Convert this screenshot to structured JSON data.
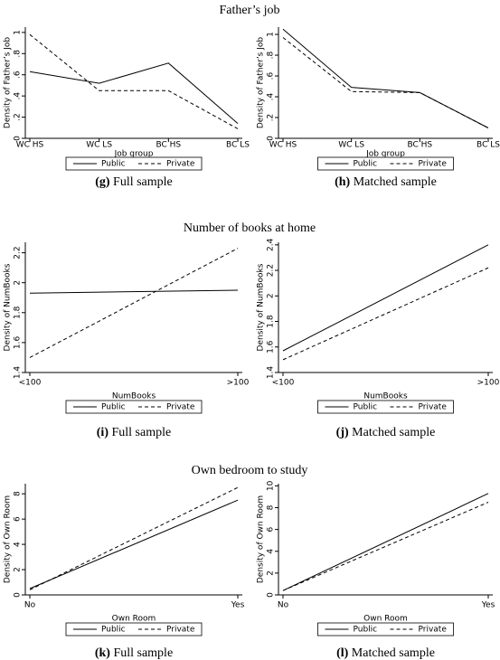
{
  "section_titles": [
    "Father’s job",
    "Number of books at home",
    "Own bedroom to study"
  ],
  "chart_data": [
    {
      "type": "line",
      "xlabel": "Job group",
      "ylabel": "Density of Father’s Job",
      "caption_label": "(g)",
      "caption": "Full sample",
      "categories": [
        "WC HS",
        "WC LS",
        "BC HS",
        "BC LS"
      ],
      "series": [
        {
          "name": "Public",
          "color": "#000000",
          "line_style": "solid",
          "values": [
            0.63,
            0.52,
            0.71,
            0.14
          ]
        },
        {
          "name": "Private",
          "color": "#000000",
          "line_style": "dashed",
          "values": [
            0.98,
            0.45,
            0.45,
            0.09
          ]
        }
      ],
      "ylim": [
        0,
        1.05
      ],
      "yticks": [
        0,
        {
          "value": 0.2,
          "label": ".2"
        },
        {
          "value": 0.4,
          "label": ".4"
        },
        {
          "value": 0.6,
          "label": ".6"
        },
        {
          "value": 0.8,
          "label": ".8"
        },
        1
      ]
    },
    {
      "type": "line",
      "xlabel": "Job group",
      "ylabel": "Density of Father’s Job",
      "caption_label": "(h)",
      "caption": "Matched sample",
      "categories": [
        "WC HS",
        "WC LS",
        "BC HS",
        "BC LS"
      ],
      "series": [
        {
          "name": "Public",
          "color": "#000000",
          "line_style": "solid",
          "values": [
            1.05,
            0.49,
            0.44,
            0.1
          ]
        },
        {
          "name": "Private",
          "color": "#000000",
          "line_style": "dashed",
          "values": [
            0.97,
            0.45,
            0.44,
            0.1
          ]
        }
      ],
      "ylim": [
        0,
        1.07
      ],
      "yticks": [
        0,
        {
          "value": 0.2,
          "label": ".2"
        },
        {
          "value": 0.4,
          "label": ".4"
        },
        {
          "value": 0.6,
          "label": ".6"
        },
        {
          "value": 0.8,
          "label": ".8"
        },
        1
      ]
    },
    {
      "type": "line",
      "xlabel": "NumBooks",
      "ylabel": "Density of NumBooks",
      "caption_label": "(i)",
      "caption": "Full sample",
      "categories": [
        "<100",
        ">100"
      ],
      "series": [
        {
          "name": "Public",
          "color": "#000000",
          "line_style": "solid",
          "values": [
            1.93,
            1.95
          ]
        },
        {
          "name": "Private",
          "color": "#000000",
          "line_style": "dashed",
          "values": [
            1.5,
            2.23
          ]
        }
      ],
      "ylim": [
        1.4,
        2.27
      ],
      "yticks": [
        1.4,
        1.6,
        1.8,
        2,
        2.2
      ]
    },
    {
      "type": "line",
      "xlabel": "NumBooks",
      "ylabel": "Density of NumBooks",
      "caption_label": "(j)",
      "caption": "Matched sample",
      "categories": [
        "<100",
        ">100"
      ],
      "series": [
        {
          "name": "Public",
          "color": "#000000",
          "line_style": "solid",
          "values": [
            1.57,
            2.4
          ]
        },
        {
          "name": "Private",
          "color": "#000000",
          "line_style": "dashed",
          "values": [
            1.5,
            2.22
          ]
        }
      ],
      "ylim": [
        1.4,
        2.42
      ],
      "yticks": [
        1.4,
        1.6,
        1.8,
        2,
        2.2,
        2.4
      ]
    },
    {
      "type": "line",
      "xlabel": "Own Room",
      "ylabel": "Density of Own Room",
      "caption_label": "(k)",
      "caption": "Full sample",
      "categories": [
        "No",
        "Yes"
      ],
      "series": [
        {
          "name": "Public",
          "color": "#000000",
          "line_style": "solid",
          "values": [
            0.5,
            7.5
          ]
        },
        {
          "name": "Private",
          "color": "#000000",
          "line_style": "dashed",
          "values": [
            0.4,
            8.5
          ]
        }
      ],
      "ylim": [
        0,
        8.8
      ],
      "yticks": [
        0,
        2,
        4,
        6,
        8
      ]
    },
    {
      "type": "line",
      "xlabel": "Own Room",
      "ylabel": "Density of Own Room",
      "caption_label": "(l)",
      "caption": "Matched sample",
      "categories": [
        "No",
        "Yes"
      ],
      "series": [
        {
          "name": "Public",
          "color": "#000000",
          "line_style": "solid",
          "values": [
            0.4,
            9.3
          ]
        },
        {
          "name": "Private",
          "color": "#000000",
          "line_style": "dashed",
          "values": [
            0.4,
            8.5
          ]
        }
      ],
      "ylim": [
        0,
        10.2
      ],
      "yticks": [
        0,
        2,
        4,
        6,
        8,
        10
      ]
    }
  ]
}
